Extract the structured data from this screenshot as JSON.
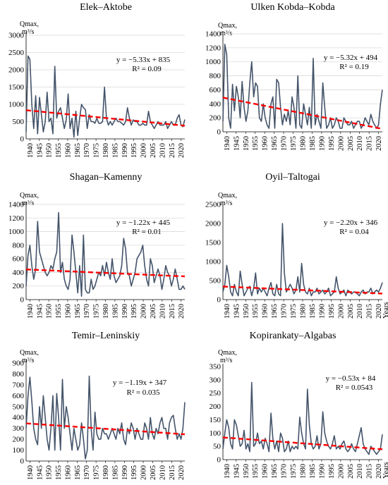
{
  "colors": {
    "series": "#44546A",
    "trend": "#FF0000",
    "grid": "#D9D9D9",
    "axis": "#000000"
  },
  "chart_data": [
    {
      "type": "line",
      "title": "Elek–Aktobe",
      "ylabel": "Qmax, m³/s",
      "xlabel": "",
      "ylim": [
        0,
        3000
      ],
      "yticks": [
        0,
        500,
        1000,
        1500,
        2000,
        2500,
        3000
      ],
      "xticks": [
        1940,
        1945,
        1950,
        1955,
        1960,
        1965,
        1970,
        1975,
        1980,
        1985,
        1990,
        1995,
        2000,
        2005,
        2010,
        2015,
        2020
      ],
      "grid": true,
      "legend": "none",
      "trend": {
        "equation": "y = −5.33x + 835",
        "r2": "R² = 0.09",
        "slope": -5.33,
        "intercept": 835
      },
      "x_start": 1938,
      "series": [
        {
          "values": [
            200,
            2400,
            2300,
            1000,
            300,
            1250,
            150,
            1200,
            700,
            200,
            500,
            1350,
            500,
            600,
            150,
            2100,
            600,
            800,
            900,
            600,
            300,
            550,
            1300,
            300,
            600,
            50,
            800,
            100,
            600,
            1000,
            900,
            850,
            300,
            700,
            500,
            500,
            450,
            600,
            450,
            450,
            500,
            1500,
            600,
            400,
            500,
            400,
            500,
            600,
            500,
            500,
            450,
            400,
            500,
            900,
            600,
            400,
            550,
            500,
            500,
            400,
            400,
            450,
            400,
            400,
            800,
            500,
            400,
            300,
            400,
            500,
            400,
            400,
            400,
            500,
            300,
            400,
            500,
            400,
            400,
            600,
            700,
            400,
            350,
            560
          ]
        }
      ]
    },
    {
      "type": "line",
      "title": "Ulken Kobda–Kobda",
      "ylabel": "Qmax, m³/s",
      "xlabel": "",
      "ylim": [
        0,
        1400
      ],
      "yticks": [
        0,
        200,
        400,
        600,
        800,
        1000,
        1200,
        1400
      ],
      "xticks": [
        1940,
        1945,
        1950,
        1955,
        1960,
        1965,
        1970,
        1975,
        1980,
        1985,
        1990,
        1995,
        2000,
        2005,
        2010,
        2015,
        2020
      ],
      "grid": true,
      "legend": "none",
      "trend": {
        "equation": "y = −5.32x + 494",
        "r2": "R² = 0.19",
        "slope": -5.32,
        "intercept": 494
      },
      "x_start": 1938,
      "series": [
        {
          "values": [
            150,
            1250,
            1100,
            200,
            50,
            680,
            300,
            650,
            500,
            200,
            720,
            350,
            150,
            300,
            700,
            1000,
            500,
            700,
            650,
            200,
            150,
            400,
            200,
            100,
            50,
            400,
            500,
            50,
            750,
            700,
            350,
            100,
            250,
            150,
            300,
            100,
            500,
            350,
            50,
            800,
            100,
            50,
            400,
            250,
            100,
            350,
            50,
            1050,
            100,
            250,
            150,
            50,
            700,
            350,
            50,
            100,
            200,
            50,
            100,
            200,
            150,
            50,
            50,
            200,
            150,
            100,
            100,
            150,
            50,
            100,
            150,
            150,
            50,
            100,
            200,
            150,
            100,
            250,
            150,
            100,
            50,
            100,
            400,
            600
          ]
        }
      ]
    },
    {
      "type": "line",
      "title": "Shagan–Kamenny",
      "ylabel": "Qmax, m³/s",
      "xlabel": "",
      "ylim": [
        0,
        1400
      ],
      "yticks": [
        0,
        200,
        400,
        600,
        800,
        1000,
        1200,
        1400
      ],
      "xticks": [
        1940,
        1945,
        1950,
        1955,
        1960,
        1965,
        1970,
        1975,
        1980,
        1985,
        1990,
        1995,
        2000,
        2005,
        2010,
        2015,
        2020
      ],
      "grid": true,
      "legend": "none",
      "trend": {
        "equation": "y = −1.22x + 445",
        "r2": "R² = 0.01",
        "slope": -1.22,
        "intercept": 445
      },
      "x_start": 1938,
      "series": [
        {
          "values": [
            200,
            650,
            800,
            500,
            300,
            450,
            1150,
            700,
            600,
            500,
            400,
            350,
            400,
            500,
            450,
            600,
            700,
            1280,
            400,
            550,
            300,
            200,
            150,
            300,
            950,
            700,
            400,
            100,
            500,
            50,
            950,
            150,
            100,
            100,
            300,
            150,
            200,
            300,
            400,
            350,
            500,
            350,
            550,
            400,
            300,
            600,
            350,
            250,
            300,
            350,
            500,
            900,
            750,
            400,
            350,
            200,
            300,
            400,
            600,
            650,
            700,
            800,
            500,
            300,
            200,
            600,
            500,
            250,
            350,
            450,
            350,
            150,
            300,
            500,
            400,
            350,
            200,
            300,
            450,
            300,
            150,
            150,
            200,
            150
          ]
        }
      ]
    },
    {
      "type": "line",
      "title": "Oyil–Taltogai",
      "ylabel": "Qmax, m³/s",
      "xlabel": "Years",
      "ylim": [
        0,
        2500
      ],
      "yticks": [
        0,
        500,
        1000,
        1500,
        2000,
        2500
      ],
      "xticks": [
        1940,
        1945,
        1950,
        1955,
        1960,
        1965,
        1970,
        1975,
        1980,
        1985,
        1990,
        1995,
        2000,
        2005,
        2010,
        2015,
        2020
      ],
      "grid": false,
      "legend": "none",
      "trend": {
        "equation": "y = −2.20x + 346",
        "r2": "R² = 0.04",
        "slope": -2.2,
        "intercept": 346
      },
      "x_start": 1938,
      "series": [
        {
          "values": [
            200,
            400,
            900,
            600,
            200,
            100,
            400,
            200,
            100,
            750,
            400,
            100,
            200,
            300,
            350,
            100,
            300,
            700,
            150,
            300,
            200,
            300,
            200,
            100,
            300,
            450,
            150,
            100,
            400,
            150,
            100,
            2000,
            700,
            200,
            300,
            400,
            300,
            150,
            250,
            600,
            200,
            950,
            400,
            200,
            150,
            300,
            100,
            200,
            200,
            300,
            150,
            200,
            250,
            150,
            200,
            300,
            100,
            150,
            200,
            600,
            300,
            150,
            200,
            250,
            100,
            250,
            200,
            150,
            200,
            200,
            150,
            100,
            200,
            250,
            150,
            200,
            200,
            300,
            150,
            200,
            250,
            200,
            300,
            450
          ]
        }
      ]
    },
    {
      "type": "line",
      "title": "Temir–Leninskiy",
      "ylabel": "Qmax, m³/s",
      "xlabel": "",
      "ylim": [
        0,
        900
      ],
      "yticks": [
        0,
        100,
        200,
        300,
        400,
        500,
        600,
        700,
        800,
        900
      ],
      "xticks": [
        1940,
        1945,
        1950,
        1955,
        1960,
        1965,
        1970,
        1975,
        1980,
        1985,
        1990,
        1995,
        2000,
        2005,
        2010,
        2015,
        2020
      ],
      "grid": false,
      "legend": "none",
      "trend": {
        "equation": "y = −1.19x + 347",
        "r2": "R² = 0.035",
        "slope": -1.19,
        "intercept": 347
      },
      "x_start": 1938,
      "series": [
        {
          "values": [
            300,
            600,
            770,
            550,
            300,
            200,
            150,
            500,
            300,
            600,
            400,
            200,
            100,
            300,
            600,
            100,
            620,
            400,
            100,
            750,
            300,
            500,
            400,
            250,
            100,
            300,
            200,
            100,
            150,
            350,
            200,
            20,
            100,
            780,
            300,
            100,
            450,
            250,
            200,
            200,
            300,
            250,
            250,
            200,
            250,
            300,
            250,
            200,
            300,
            250,
            350,
            200,
            150,
            300,
            250,
            350,
            300,
            200,
            300,
            250,
            200,
            200,
            350,
            300,
            200,
            400,
            250,
            200,
            300,
            250,
            350,
            400,
            300,
            300,
            200,
            350,
            400,
            420,
            300,
            200,
            250,
            200,
            300,
            540
          ]
        }
      ]
    },
    {
      "type": "line",
      "title": "Kopirankaty–Algabas",
      "ylabel": "Qmax, m³/s",
      "xlabel": "Years",
      "ylim": [
        0,
        350
      ],
      "yticks": [
        0,
        50,
        100,
        150,
        200,
        250,
        300,
        350
      ],
      "xticks": [
        1940,
        1945,
        1950,
        1955,
        1960,
        1965,
        1970,
        1975,
        1980,
        1985,
        1990,
        1995,
        2000,
        2005,
        2010,
        2015,
        2020
      ],
      "grid": false,
      "legend": "none",
      "trend": {
        "equation": "y = −0.53x + 84",
        "r2": "R² = 0.0543",
        "slope": -0.53,
        "intercept": 84
      },
      "x_start": 1938,
      "series": [
        {
          "values": [
            40,
            100,
            150,
            120,
            60,
            40,
            150,
            130,
            90,
            50,
            60,
            110,
            40,
            60,
            30,
            290,
            50,
            60,
            100,
            60,
            70,
            40,
            80,
            60,
            30,
            175,
            80,
            40,
            70,
            30,
            100,
            80,
            30,
            40,
            70,
            30,
            50,
            40,
            50,
            40,
            160,
            100,
            60,
            40,
            265,
            130,
            60,
            40,
            50,
            90,
            40,
            60,
            180,
            100,
            70,
            50,
            40,
            60,
            90,
            40,
            50,
            40,
            60,
            70,
            40,
            30,
            40,
            60,
            40,
            30,
            60,
            90,
            120,
            60,
            40,
            30,
            20,
            50,
            40,
            30,
            20,
            30,
            40,
            95
          ]
        }
      ]
    }
  ]
}
